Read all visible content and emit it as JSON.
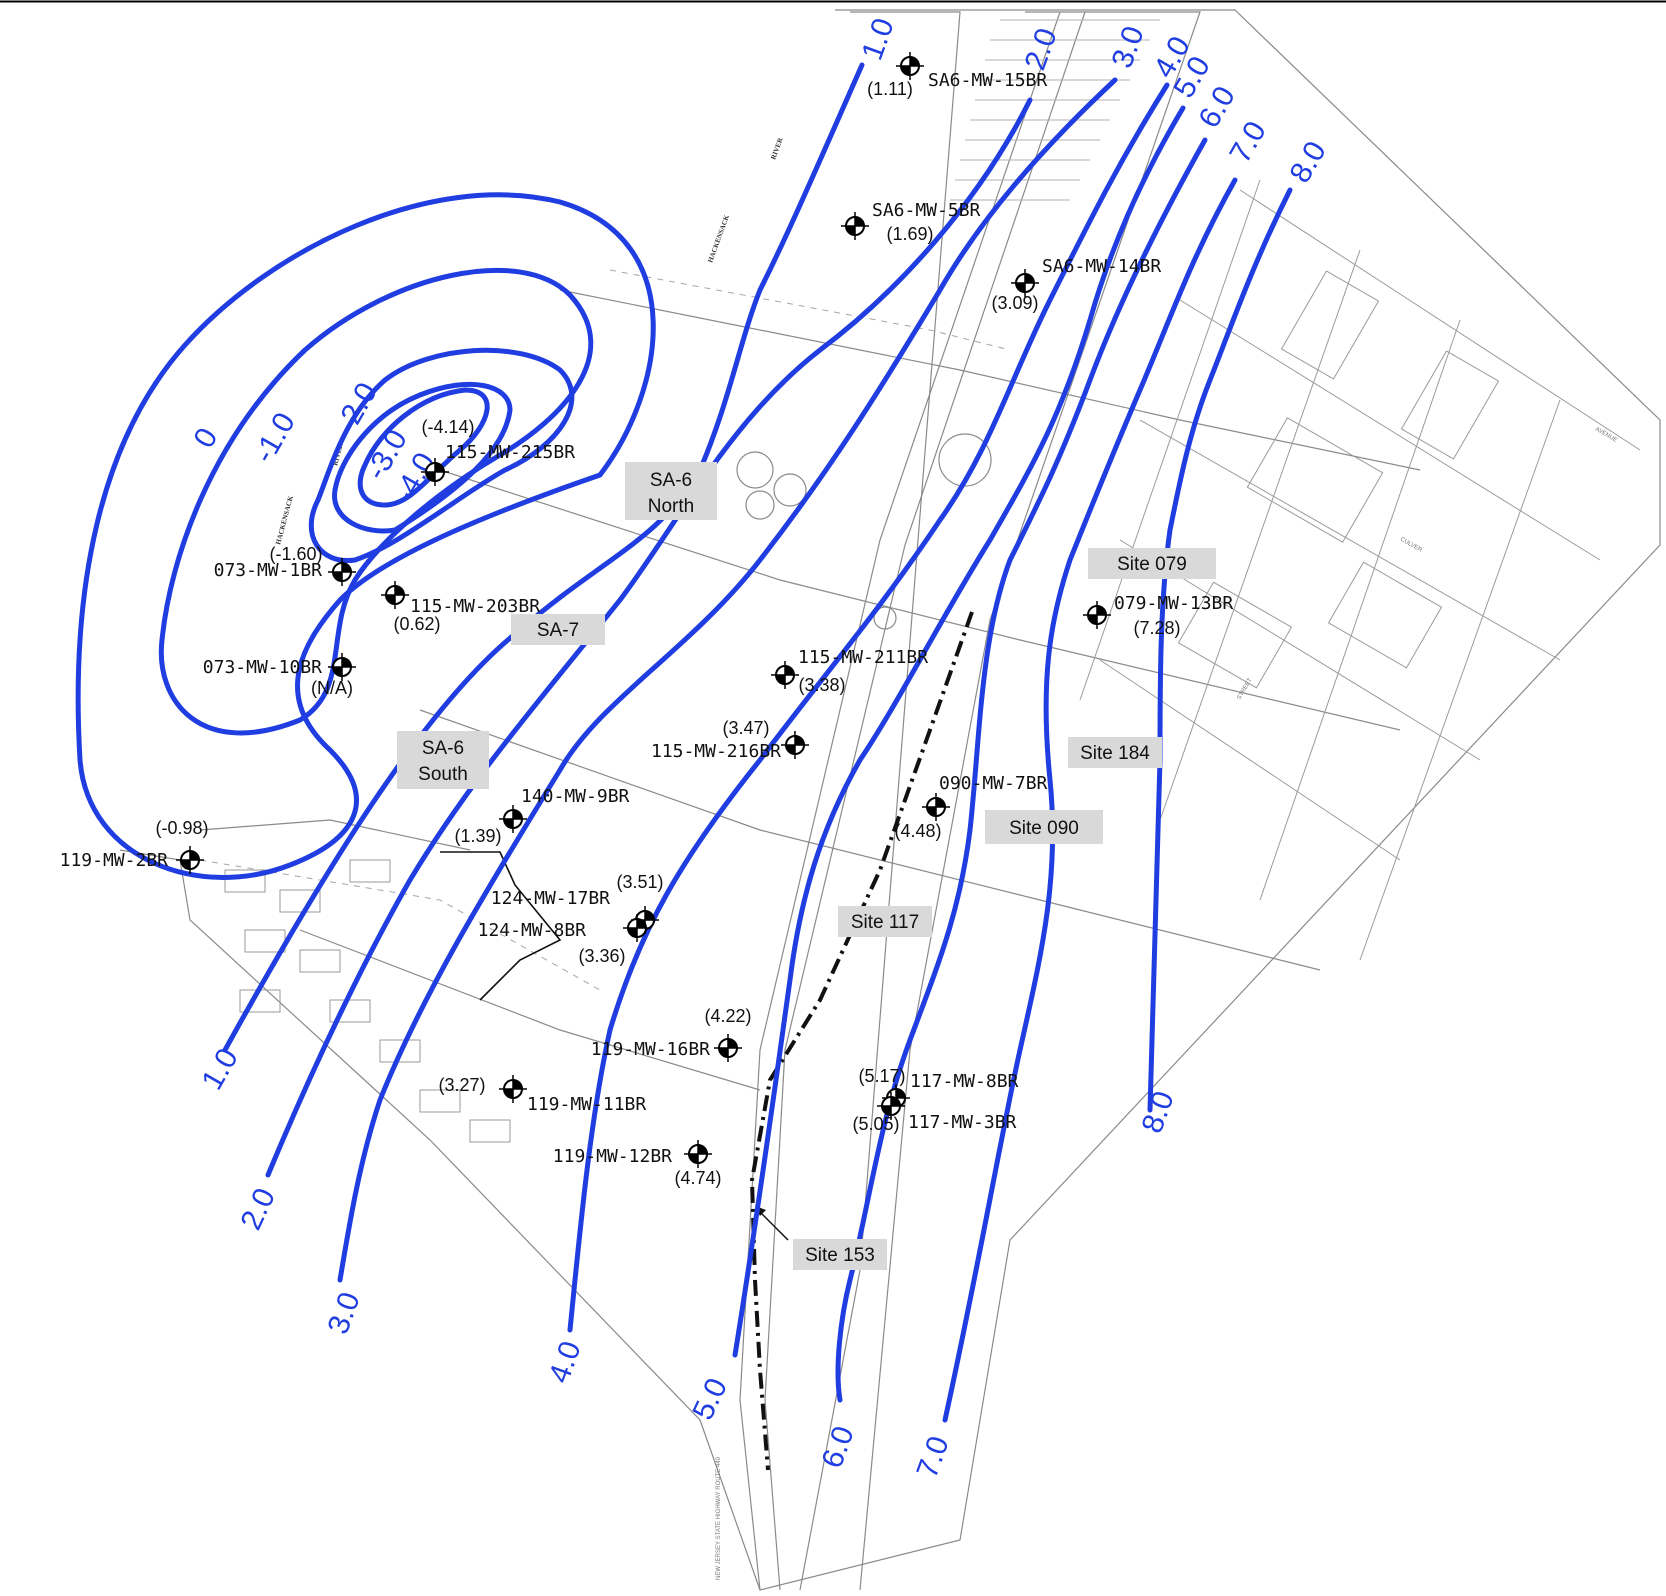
{
  "contour_labels": [
    {
      "id": "c-0",
      "text": "0"
    },
    {
      "id": "c-m1-0",
      "text": "-1.0"
    },
    {
      "id": "c-m2-0",
      "text": "-2.0"
    },
    {
      "id": "c-m3-0",
      "text": "-3.0"
    },
    {
      "id": "c-m4-0",
      "text": "-4.0"
    },
    {
      "id": "c-1-0-top",
      "text": "1.0"
    },
    {
      "id": "c-2-0-top",
      "text": "2.0"
    },
    {
      "id": "c-3-0-top",
      "text": "3.0"
    },
    {
      "id": "c-4-0-top",
      "text": "4.0"
    },
    {
      "id": "c-5-0-top",
      "text": "5.0"
    },
    {
      "id": "c-6-0-top",
      "text": "6.0"
    },
    {
      "id": "c-7-0-top",
      "text": "7.0"
    },
    {
      "id": "c-8-0-top",
      "text": "8.0"
    },
    {
      "id": "c-1-0-bot",
      "text": "1.0"
    },
    {
      "id": "c-2-0-bot",
      "text": "2.0"
    },
    {
      "id": "c-3-0-bot",
      "text": "3.0"
    },
    {
      "id": "c-4-0-bot",
      "text": "4.0"
    },
    {
      "id": "c-5-0-bot",
      "text": "5.0"
    },
    {
      "id": "c-6-0-bot",
      "text": "6.0"
    },
    {
      "id": "c-7-0-bot",
      "text": "7.0"
    },
    {
      "id": "c-8-0-bot",
      "text": "8.0"
    }
  ],
  "wells": [
    {
      "name": "SA6-MW-15BR",
      "value": "(1.11)"
    },
    {
      "name": "SA6-MW-5BR",
      "value": "(1.69)"
    },
    {
      "name": "SA6-MW-14BR",
      "value": "(3.09)"
    },
    {
      "name": "115-MW-215BR",
      "value": "(-4.14)"
    },
    {
      "name": "073-MW-1BR",
      "value": "(-1.60)"
    },
    {
      "name": "115-MW-203BR",
      "value": "(0.62)"
    },
    {
      "name": "073-MW-10BR",
      "value": "(N/A)"
    },
    {
      "name": "079-MW-13BR",
      "value": "(7.28)"
    },
    {
      "name": "115-MW-211BR",
      "value": "(3.38)"
    },
    {
      "name": "115-MW-216BR",
      "value": "(3.47)"
    },
    {
      "name": "140-MW-9BR",
      "value": "(1.39)"
    },
    {
      "name": "090-MW-7BR",
      "value": "(4.48)"
    },
    {
      "name": "119-MW-2BR",
      "value": "(-0.98)"
    },
    {
      "name": "124-MW-17BR",
      "value": "(3.51)"
    },
    {
      "name": "124-MW-8BR",
      "value": "(3.36)"
    },
    {
      "name": "119-MW-16BR",
      "value": "(4.22)"
    },
    {
      "name": "119-MW-11BR",
      "value": "(3.27)"
    },
    {
      "name": "117-MW-8BR",
      "value": "(5.17)"
    },
    {
      "name": "117-MW-3BR",
      "value": "(5.05)"
    },
    {
      "name": "119-MW-12BR",
      "value": "(4.74)"
    }
  ],
  "sites": [
    {
      "lines": [
        "SA-6",
        "North"
      ]
    },
    {
      "lines": [
        "SA-7"
      ]
    },
    {
      "lines": [
        "SA-6",
        "South"
      ]
    },
    {
      "lines": [
        "Site 079"
      ]
    },
    {
      "lines": [
        "Site 184"
      ]
    },
    {
      "lines": [
        "Site 090"
      ]
    },
    {
      "lines": [
        "Site 117"
      ]
    },
    {
      "lines": [
        "Site 153"
      ]
    }
  ],
  "map_text": {
    "river_1": "HACKENSACK",
    "river_2": "RIVER",
    "river_3": "RIVER",
    "river_4": "HACKENSACK",
    "highway": "NEW JERSEY STATE HIGHWAY ROUTE 440",
    "street_1": "AVENUE",
    "street_2": "STREET",
    "street_3": "CULVER"
  },
  "colors": {
    "contour": "#1f3de0",
    "site_label_bg": "#d9d9d9",
    "basemap": "#9a9a9a"
  }
}
